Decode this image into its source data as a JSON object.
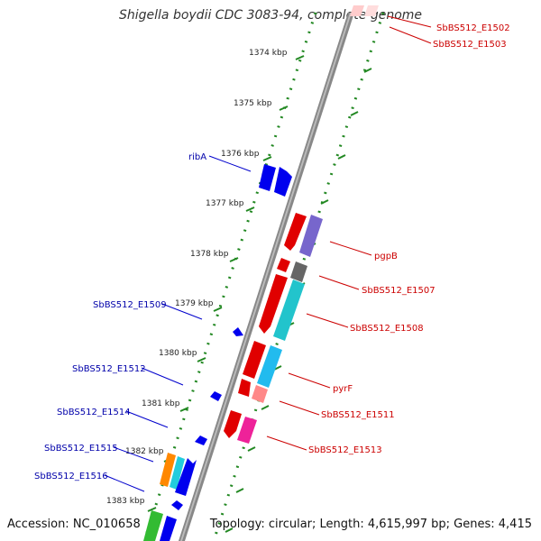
{
  "title": "Shigella boydii CDC 3083-94, complete genome",
  "footer": {
    "accession": "Accession: NC_010658",
    "topology": "Topology: circular; Length: 4,615,997 bp; Genes: 4,415"
  },
  "ticks": [
    "1374 kbp",
    "1375 kbp",
    "1376 kbp",
    "1377 kbp",
    "1378 kbp",
    "1379 kbp",
    "1380 kbp",
    "1381 kbp",
    "1382 kbp",
    "1383 kbp"
  ],
  "labels_right": [
    "SbBS512_E1502",
    "SbBS512_E1503",
    "pgpB",
    "SbBS512_E1507",
    "SbBS512_E1508",
    "pyrF",
    "SbBS512_E1511",
    "SbBS512_E1513"
  ],
  "labels_left": [
    "ribA",
    "SbBS512_E1509",
    "SbBS512_E1512",
    "SbBS512_E1514",
    "SbBS512_E1515",
    "SbBS512_E1516"
  ],
  "colors": {
    "backbone": "#888888",
    "tick_marks": "#228822",
    "forward_label": "#cc0000",
    "reverse_label": "#0000aa"
  }
}
